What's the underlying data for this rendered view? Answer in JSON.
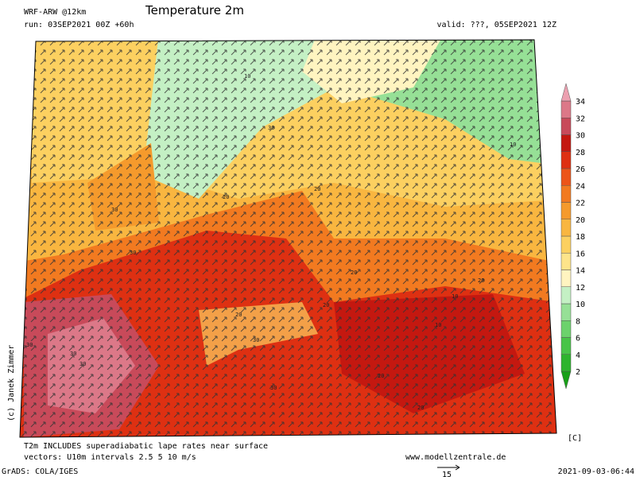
{
  "header": {
    "model": "WRF-ARW @12km",
    "title": "Temperature 2m",
    "run": "run: 03SEP2021 00Z +60h",
    "valid": "valid: ???, 05SEP2021 12Z"
  },
  "copyright": "(c) Janek Zimmer",
  "footer": {
    "note1": "T2m INCLUDES superadiabatic lape rates near surface",
    "note2": "vectors: U10m intervals 2.5 5 10 m/s",
    "website": "www.modellzentrale.de",
    "software": "GrADS: COLA/IGES",
    "vector_scale": "15",
    "timestamp": "2021-09-03-06:44"
  },
  "colorbar": {
    "unit": "[C]",
    "labels": [
      2,
      4,
      6,
      8,
      10,
      12,
      14,
      16,
      18,
      20,
      22,
      24,
      26,
      28,
      30,
      32,
      34
    ],
    "colors": [
      "#18a018",
      "#2db42d",
      "#48c448",
      "#6cd26c",
      "#96e096",
      "#c4f0c4",
      "#fff4c0",
      "#fde48a",
      "#fcd060",
      "#f9b640",
      "#f59a2c",
      "#f27a20",
      "#ec5418",
      "#de3012",
      "#c41810",
      "#c84a5a",
      "#dc7888",
      "#eca0b0"
    ]
  },
  "map": {
    "contour_labels": [
      "10",
      "10",
      "10",
      "20",
      "30",
      "30",
      "30",
      "30",
      "20",
      "20",
      "20",
      "30",
      "30",
      "30",
      "20",
      "10",
      "20",
      "20",
      "30",
      "20"
    ]
  }
}
